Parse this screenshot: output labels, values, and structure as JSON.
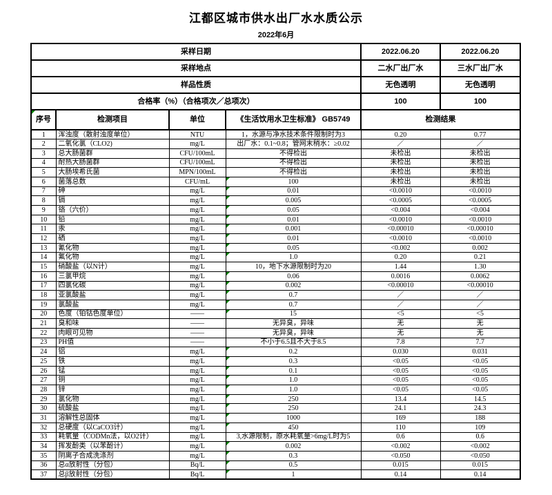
{
  "page": {
    "title": "江都区城市供水出厂水水质公示",
    "subtitle": "2022年6月"
  },
  "info_rows": [
    {
      "label": "采样日期",
      "v1": "2022.06.20",
      "v2": "2022.06.20"
    },
    {
      "label": "采样地点",
      "v1": "二水厂出厂水",
      "v2": "三水厂出厂水"
    },
    {
      "label": "样品性质",
      "v1": "无色透明",
      "v2": "无色透明"
    },
    {
      "label": "合格率（%）（合格项次／总项次）",
      "v1": "100",
      "v2": "100"
    }
  ],
  "columns": {
    "no": "序号",
    "item": "检测项目",
    "unit": "单位",
    "standard": "《生活饮用水卫生标准》 GB5749",
    "result": "检测结果"
  },
  "colors": {
    "error_triangle": "#008000",
    "border": "#000000",
    "background": "#ffffff"
  },
  "rows": [
    {
      "no": "1",
      "item": "浑浊度（散射浊度单位）",
      "unit": "NTU",
      "standard": "1，水源与净水技术条件限制时为3",
      "r1": "0.20",
      "r2": "0.77",
      "flag": false
    },
    {
      "no": "2",
      "item": "二氧化氯（CLO2)",
      "unit": "mg/L",
      "standard": "出厂水：0.1~0.8；管网末稍水：≥0.02",
      "r1": "／",
      "r2": "／",
      "flag": false
    },
    {
      "no": "3",
      "item": "总大肠菌群",
      "unit": "CFU/100mL",
      "standard": "不得检出",
      "r1": "未检出",
      "r2": "未检出",
      "flag": false
    },
    {
      "no": "4",
      "item": "耐热大肠菌群",
      "unit": "CFU/100mL",
      "standard": "不得检出",
      "r1": "未检出",
      "r2": "未检出",
      "flag": false
    },
    {
      "no": "5",
      "item": "大肠埃希氏菌",
      "unit": "MPN/100mL",
      "standard": "不得检出",
      "r1": "未检出",
      "r2": "未检出",
      "flag": false
    },
    {
      "no": "6",
      "item": "菌落总数",
      "unit": "CFU/mL",
      "standard": "100",
      "r1": "未检出",
      "r2": "未检出",
      "flag": true
    },
    {
      "no": "7",
      "item": "砷",
      "unit": "mg/L",
      "standard": "0.01",
      "r1": "<0.0010",
      "r2": "<0.0010",
      "flag": true
    },
    {
      "no": "8",
      "item": "镉",
      "unit": "mg/L",
      "standard": "0.005",
      "r1": "<0.0005",
      "r2": "<0.0005",
      "flag": true
    },
    {
      "no": "9",
      "item": "铬（六价）",
      "unit": "mg/L",
      "standard": "0.05",
      "r1": "<0.004",
      "r2": "<0.004",
      "flag": true
    },
    {
      "no": "10",
      "item": "铅",
      "unit": "mg/L",
      "standard": "0.01",
      "r1": "<0.0010",
      "r2": "<0.0010",
      "flag": true
    },
    {
      "no": "11",
      "item": "汞",
      "unit": "mg/L",
      "standard": "0.001",
      "r1": "<0.00010",
      "r2": "<0.00010",
      "flag": true
    },
    {
      "no": "12",
      "item": "硒",
      "unit": "mg/L",
      "standard": "0.01",
      "r1": "<0.0010",
      "r2": "<0.0010",
      "flag": true
    },
    {
      "no": "13",
      "item": "氰化物",
      "unit": "mg/L",
      "standard": "0.05",
      "r1": "<0.002",
      "r2": "0.002",
      "flag": true
    },
    {
      "no": "14",
      "item": "氟化物",
      "unit": "mg/L",
      "standard": "1.0",
      "r1": "0.20",
      "r2": "0.21",
      "flag": true
    },
    {
      "no": "15",
      "item": "硝酸盐（以N计）",
      "unit": "mg/L",
      "standard": "10，地下水源限制时为20",
      "r1": "1.44",
      "r2": "1.30",
      "flag": false
    },
    {
      "no": "16",
      "item": "三氯甲烷",
      "unit": "mg/L",
      "standard": "0.06",
      "r1": "0.0016",
      "r2": "0.0062",
      "flag": true
    },
    {
      "no": "17",
      "item": "四氯化碳",
      "unit": "mg/L",
      "standard": "0.002",
      "r1": "<0.00010",
      "r2": "<0.00010",
      "flag": true
    },
    {
      "no": "18",
      "item": "亚氯酸盐",
      "unit": "mg/L",
      "standard": "0.7",
      "r1": "／",
      "r2": "／",
      "flag": true
    },
    {
      "no": "19",
      "item": "氯酸盐",
      "unit": "mg/L",
      "standard": "0.7",
      "r1": "／",
      "r2": "／",
      "flag": true
    },
    {
      "no": "20",
      "item": "色度（铂钴色度单位）",
      "unit": "——",
      "standard": "15",
      "r1": "<5",
      "r2": "<5",
      "flag": true
    },
    {
      "no": "21",
      "item": "臭和味",
      "unit": "——",
      "standard": "无异臭，异味",
      "r1": "无",
      "r2": "无",
      "flag": false
    },
    {
      "no": "22",
      "item": "肉眼可见物",
      "unit": "——",
      "standard": "无异臭，异味",
      "r1": "无",
      "r2": "无",
      "flag": false
    },
    {
      "no": "23",
      "item": "PH值",
      "unit": "——",
      "standard": "不小于6.5且不大于8.5",
      "r1": "7.8",
      "r2": "7.7",
      "flag": false
    },
    {
      "no": "24",
      "item": "铝",
      "unit": "mg/L",
      "standard": "0.2",
      "r1": "0.030",
      "r2": "0.031",
      "flag": true
    },
    {
      "no": "25",
      "item": "铁",
      "unit": "mg/L",
      "standard": "0.3",
      "r1": "<0.05",
      "r2": "<0.05",
      "flag": true
    },
    {
      "no": "26",
      "item": "锰",
      "unit": "mg/L",
      "standard": "0.1",
      "r1": "<0.05",
      "r2": "<0.05",
      "flag": true
    },
    {
      "no": "27",
      "item": "铜",
      "unit": "mg/L",
      "standard": "1.0",
      "r1": "<0.05",
      "r2": "<0.05",
      "flag": true
    },
    {
      "no": "28",
      "item": "锌",
      "unit": "mg/L",
      "standard": "1.0",
      "r1": "<0.05",
      "r2": "<0.05",
      "flag": true
    },
    {
      "no": "29",
      "item": "氯化物",
      "unit": "mg/L",
      "standard": "250",
      "r1": "13.4",
      "r2": "14.5",
      "flag": true
    },
    {
      "no": "30",
      "item": "硫酸盐",
      "unit": "mg/L",
      "standard": "250",
      "r1": "24.1",
      "r2": "24.3",
      "flag": true
    },
    {
      "no": "31",
      "item": "溶解性总固体",
      "unit": "mg/L",
      "standard": "1000",
      "r1": "169",
      "r2": "188",
      "flag": true
    },
    {
      "no": "32",
      "item": "总硬度（以CaCO3计）",
      "unit": "mg/L",
      "standard": "450",
      "r1": "110",
      "r2": "109",
      "flag": true
    },
    {
      "no": "33",
      "item": "耗氧量（CODMn法，以O2计）",
      "unit": "mg/L",
      "standard": "3,水源限制，原水耗氧量>6mg/L时为5",
      "r1": "0.6",
      "r2": "0.6",
      "flag": false
    },
    {
      "no": "34",
      "item": "挥发酚类（以苯酚计）",
      "unit": "mg/L",
      "standard": "0.002",
      "r1": "<0.002",
      "r2": "<0.002",
      "flag": true
    },
    {
      "no": "35",
      "item": "阴离子合成洗涤剂",
      "unit": "mg/L",
      "standard": "0.3",
      "r1": "<0.050",
      "r2": "<0.050",
      "flag": true
    },
    {
      "no": "36",
      "item": "总α放射性（分包）",
      "unit": "Bq/L",
      "standard": "0.5",
      "r1": "0.015",
      "r2": "0.015",
      "flag": true
    },
    {
      "no": "37",
      "item": "总β放射性（分包）",
      "unit": "Bq/L",
      "standard": "1",
      "r1": "0.14",
      "r2": "0.14",
      "flag": true
    }
  ]
}
